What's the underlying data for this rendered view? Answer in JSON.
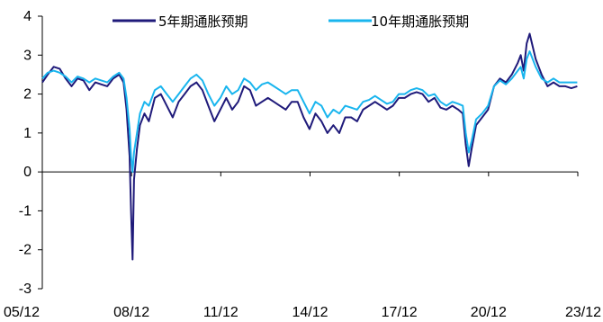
{
  "chart_data": {
    "type": "line",
    "title": "",
    "xlabel": "",
    "ylabel": "",
    "ylim": [
      -3,
      4
    ],
    "yticks": [
      -3,
      -2,
      -1,
      0,
      1,
      2,
      3,
      4
    ],
    "xlim": [
      2005.917,
      2023.917
    ],
    "xticks": [
      {
        "value": 2005.917,
        "label": "05/12"
      },
      {
        "value": 2008.917,
        "label": "08/12"
      },
      {
        "value": 2011.917,
        "label": "11/12"
      },
      {
        "value": 2014.917,
        "label": "14/12"
      },
      {
        "value": 2017.917,
        "label": "17/12"
      },
      {
        "value": 2020.917,
        "label": "20/12"
      },
      {
        "value": 2023.917,
        "label": "23/12"
      }
    ],
    "grid": false,
    "legend": "top-center",
    "series": [
      {
        "name": "5年期通胀预期",
        "color": "#1F1A7A",
        "x": [
          2005.92,
          2006.1,
          2006.3,
          2006.5,
          2006.7,
          2006.9,
          2007.1,
          2007.3,
          2007.5,
          2007.7,
          2007.9,
          2008.1,
          2008.3,
          2008.5,
          2008.65,
          2008.75,
          2008.85,
          2008.9,
          2008.95,
          2009.0,
          2009.1,
          2009.2,
          2009.35,
          2009.5,
          2009.7,
          2009.9,
          2010.1,
          2010.3,
          2010.5,
          2010.7,
          2010.9,
          2011.1,
          2011.3,
          2011.5,
          2011.7,
          2011.9,
          2012.1,
          2012.3,
          2012.5,
          2012.7,
          2012.9,
          2013.1,
          2013.3,
          2013.5,
          2013.7,
          2013.9,
          2014.1,
          2014.3,
          2014.5,
          2014.7,
          2014.9,
          2015.1,
          2015.3,
          2015.5,
          2015.7,
          2015.9,
          2016.1,
          2016.3,
          2016.5,
          2016.7,
          2016.9,
          2017.1,
          2017.3,
          2017.5,
          2017.7,
          2017.9,
          2018.1,
          2018.3,
          2018.5,
          2018.7,
          2018.9,
          2019.1,
          2019.3,
          2019.5,
          2019.7,
          2019.9,
          2020.05,
          2020.15,
          2020.25,
          2020.35,
          2020.5,
          2020.7,
          2020.9,
          2021.1,
          2021.3,
          2021.5,
          2021.7,
          2021.9,
          2022.0,
          2022.1,
          2022.2,
          2022.3,
          2022.5,
          2022.7,
          2022.9,
          2023.1,
          2023.3,
          2023.5,
          2023.7,
          2023.9
        ],
        "values": [
          2.3,
          2.5,
          2.7,
          2.65,
          2.4,
          2.2,
          2.4,
          2.35,
          2.1,
          2.3,
          2.25,
          2.2,
          2.4,
          2.5,
          2.3,
          1.6,
          0.4,
          -1.0,
          -2.25,
          -0.2,
          0.6,
          1.2,
          1.5,
          1.3,
          1.9,
          2.0,
          1.7,
          1.4,
          1.8,
          2.0,
          2.2,
          2.3,
          2.1,
          1.7,
          1.3,
          1.6,
          1.9,
          1.6,
          1.8,
          2.2,
          2.1,
          1.7,
          1.8,
          1.9,
          1.8,
          1.7,
          1.6,
          1.8,
          1.8,
          1.4,
          1.1,
          1.5,
          1.3,
          1.0,
          1.2,
          1.0,
          1.4,
          1.4,
          1.3,
          1.6,
          1.7,
          1.8,
          1.7,
          1.6,
          1.7,
          1.9,
          1.9,
          2.0,
          2.05,
          2.0,
          1.8,
          1.9,
          1.65,
          1.6,
          1.7,
          1.6,
          1.5,
          0.7,
          0.15,
          0.6,
          1.2,
          1.4,
          1.6,
          2.2,
          2.4,
          2.3,
          2.5,
          2.8,
          3.0,
          2.6,
          3.3,
          3.55,
          2.9,
          2.5,
          2.2,
          2.3,
          2.2,
          2.2,
          2.15,
          2.2
        ]
      },
      {
        "name": "10年期通胀预期",
        "color": "#19B5EE",
        "x": [
          2005.92,
          2006.1,
          2006.3,
          2006.5,
          2006.7,
          2006.9,
          2007.1,
          2007.3,
          2007.5,
          2007.7,
          2007.9,
          2008.1,
          2008.3,
          2008.5,
          2008.65,
          2008.75,
          2008.85,
          2008.9,
          2008.95,
          2009.0,
          2009.1,
          2009.2,
          2009.35,
          2009.5,
          2009.7,
          2009.9,
          2010.1,
          2010.3,
          2010.5,
          2010.7,
          2010.9,
          2011.1,
          2011.3,
          2011.5,
          2011.7,
          2011.9,
          2012.1,
          2012.3,
          2012.5,
          2012.7,
          2012.9,
          2013.1,
          2013.3,
          2013.5,
          2013.7,
          2013.9,
          2014.1,
          2014.3,
          2014.5,
          2014.7,
          2014.9,
          2015.1,
          2015.3,
          2015.5,
          2015.7,
          2015.9,
          2016.1,
          2016.3,
          2016.5,
          2016.7,
          2016.9,
          2017.1,
          2017.3,
          2017.5,
          2017.7,
          2017.9,
          2018.1,
          2018.3,
          2018.5,
          2018.7,
          2018.9,
          2019.1,
          2019.3,
          2019.5,
          2019.7,
          2019.9,
          2020.05,
          2020.15,
          2020.25,
          2020.35,
          2020.5,
          2020.7,
          2020.9,
          2021.1,
          2021.3,
          2021.5,
          2021.7,
          2021.9,
          2022.0,
          2022.1,
          2022.2,
          2022.3,
          2022.5,
          2022.7,
          2022.9,
          2023.1,
          2023.3,
          2023.5,
          2023.7,
          2023.9
        ],
        "values": [
          2.4,
          2.55,
          2.6,
          2.55,
          2.45,
          2.3,
          2.45,
          2.4,
          2.3,
          2.4,
          2.35,
          2.3,
          2.45,
          2.55,
          2.4,
          1.9,
          1.1,
          0.4,
          0.0,
          0.5,
          1.0,
          1.5,
          1.8,
          1.7,
          2.1,
          2.2,
          2.0,
          1.8,
          2.0,
          2.2,
          2.4,
          2.5,
          2.35,
          2.0,
          1.7,
          1.9,
          2.2,
          2.0,
          2.1,
          2.4,
          2.3,
          2.1,
          2.25,
          2.3,
          2.2,
          2.1,
          2.0,
          2.1,
          2.1,
          1.8,
          1.5,
          1.8,
          1.7,
          1.4,
          1.6,
          1.5,
          1.7,
          1.65,
          1.6,
          1.8,
          1.85,
          1.95,
          1.85,
          1.75,
          1.8,
          2.0,
          2.0,
          2.1,
          2.15,
          2.1,
          1.95,
          2.0,
          1.8,
          1.7,
          1.8,
          1.75,
          1.7,
          1.0,
          0.5,
          0.8,
          1.35,
          1.5,
          1.7,
          2.2,
          2.35,
          2.25,
          2.4,
          2.6,
          2.7,
          2.4,
          2.9,
          3.1,
          2.7,
          2.4,
          2.3,
          2.4,
          2.3,
          2.3,
          2.3,
          2.3
        ]
      }
    ]
  }
}
